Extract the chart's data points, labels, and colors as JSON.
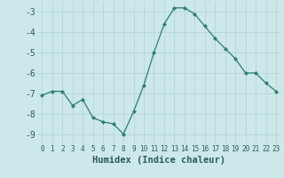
{
  "x": [
    0,
    1,
    2,
    3,
    4,
    5,
    6,
    7,
    8,
    9,
    10,
    11,
    12,
    13,
    14,
    15,
    16,
    17,
    18,
    19,
    20,
    21,
    22,
    23
  ],
  "y": [
    -7.1,
    -6.9,
    -6.9,
    -7.6,
    -7.3,
    -8.2,
    -8.4,
    -8.5,
    -9.0,
    -7.9,
    -6.6,
    -5.0,
    -3.6,
    -2.8,
    -2.8,
    -3.1,
    -3.7,
    -4.3,
    -4.8,
    -5.3,
    -6.0,
    -6.0,
    -6.5,
    -6.9
  ],
  "xlabel": "Humidex (Indice chaleur)",
  "xlim": [
    -0.5,
    23.5
  ],
  "ylim": [
    -9.5,
    -2.5
  ],
  "yticks": [
    -3,
    -4,
    -5,
    -6,
    -7,
    -8,
    -9
  ],
  "xtick_labels": [
    "0",
    "1",
    "2",
    "3",
    "4",
    "5",
    "6",
    "7",
    "8",
    "9",
    "10",
    "11",
    "12",
    "13",
    "14",
    "15",
    "16",
    "17",
    "18",
    "19",
    "20",
    "21",
    "22",
    "23"
  ],
  "line_color": "#2d7d6e",
  "marker": "D",
  "marker_size": 2.0,
  "bg_color": "#cce8ea",
  "grid_color": "#b8d8db",
  "xlabel_fontsize": 7.5,
  "ytick_fontsize": 7,
  "xtick_fontsize": 5.5,
  "text_color": "#2d5a5a"
}
